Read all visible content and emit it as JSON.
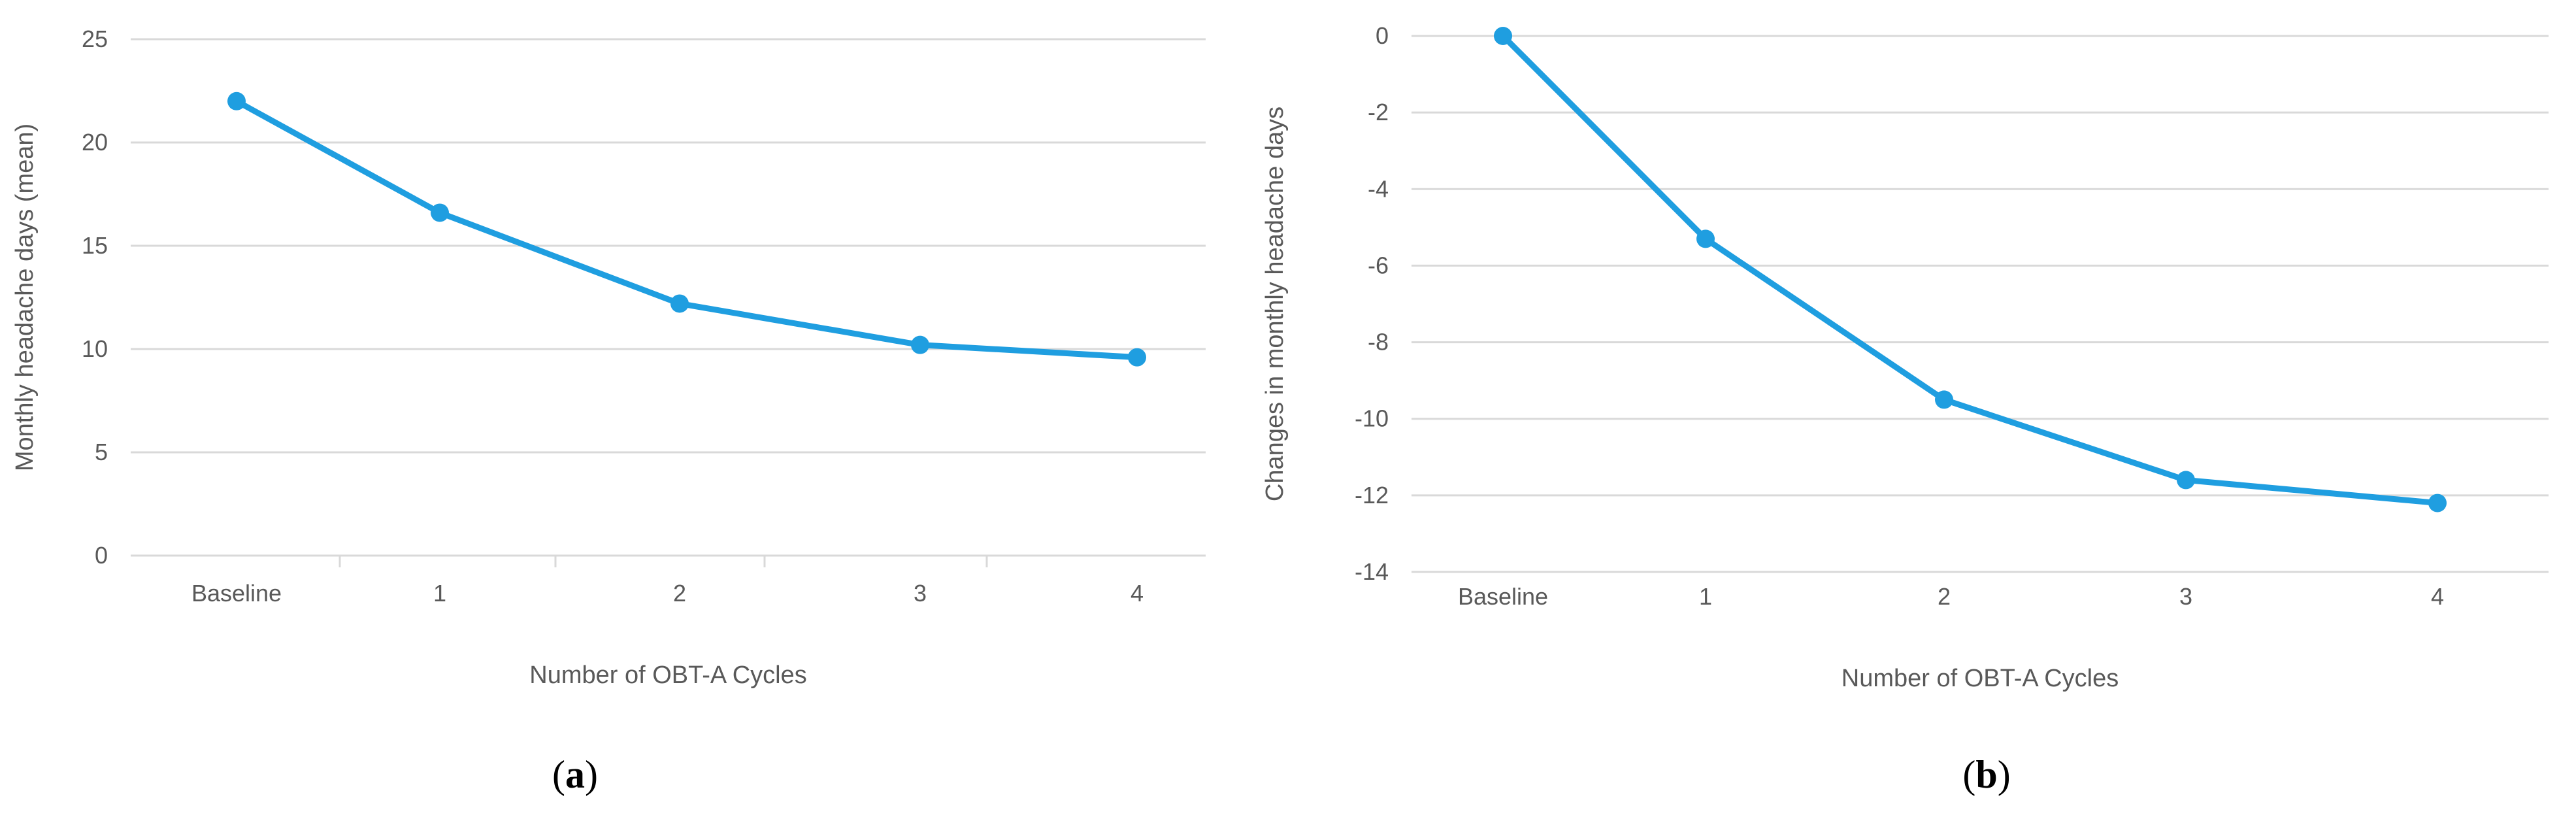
{
  "series_color": "#1f9ee0",
  "chart_data": [
    {
      "type": "line",
      "panel_label": "a",
      "xlabel": "Number of OBT-A Cycles",
      "ylabel": "Monthly headache days (mean)",
      "categories": [
        "Baseline",
        "1",
        "2",
        "3",
        "4"
      ],
      "ylim": [
        0,
        25
      ],
      "yticks": [
        0,
        5,
        10,
        15,
        20,
        25
      ],
      "grid": true,
      "series": [
        {
          "values": [
            22,
            16.6,
            12.2,
            10.2,
            9.6
          ]
        }
      ]
    },
    {
      "type": "line",
      "panel_label": "b",
      "xlabel": "Number of OBT-A Cycles",
      "ylabel": "Changes in monthly headache days",
      "categories": [
        "Baseline",
        "1",
        "2",
        "3",
        "4"
      ],
      "ylim": [
        -14,
        0
      ],
      "yticks": [
        0,
        -2,
        -4,
        -6,
        -8,
        -10,
        -12,
        -14
      ],
      "grid": true,
      "series": [
        {
          "values": [
            0,
            -5.3,
            -9.5,
            -11.6,
            -12.2
          ]
        }
      ]
    }
  ]
}
